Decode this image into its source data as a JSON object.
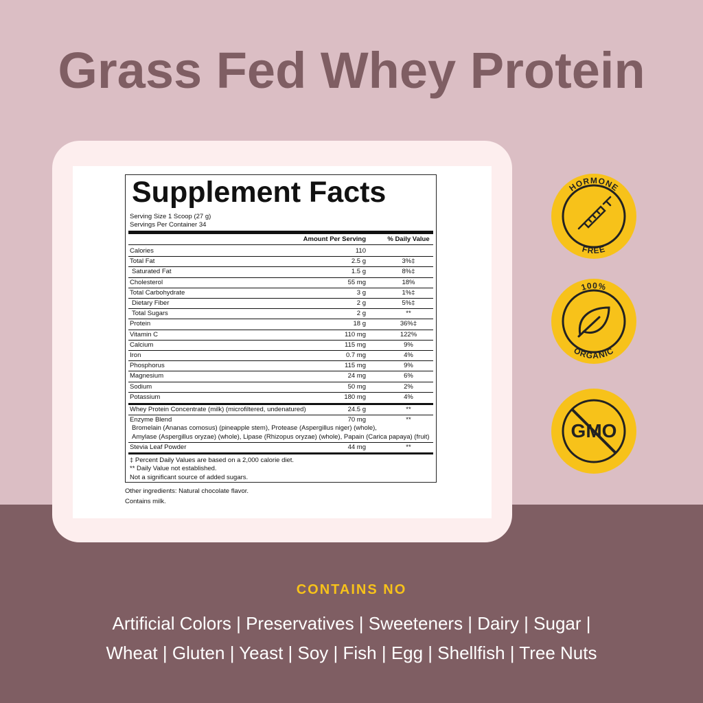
{
  "title": "Grass Fed Whey Protein",
  "facts": {
    "title": "Supplement Facts",
    "serving_size": "Serving Size 1 Scoop (27 g)",
    "servings_per_container": "Servings Per Container 34",
    "header": {
      "amount": "Amount Per Serving",
      "dv": "% Daily Value"
    },
    "rows": [
      {
        "name": "Calories",
        "amount": "110"
      },
      {
        "name": "Total Fat",
        "amount": "2.5 g",
        "dv": "3%‡"
      },
      {
        "name": "Saturated Fat",
        "amount": "1.5 g",
        "dv": "8%‡",
        "indent": true
      },
      {
        "name": "Cholesterol",
        "amount": "55 mg",
        "dv": "18%"
      },
      {
        "name": "Total Carbohydrate",
        "amount": "3 g",
        "dv": "1%‡"
      },
      {
        "name": "Dietary Fiber",
        "amount": "2 g",
        "dv": "5%‡",
        "indent": true
      },
      {
        "name": "Total Sugars",
        "amount": "2 g",
        "dv": "**",
        "indent": true
      },
      {
        "name": "Protein",
        "amount": "18 g",
        "dv": "36%‡"
      },
      {
        "name": "Vitamin C",
        "amount": "110 mg",
        "dv": "122%"
      },
      {
        "name": "Calcium",
        "amount": "115 mg",
        "dv": "9%"
      },
      {
        "name": "Iron",
        "amount": "0.7 mg",
        "dv": "4%"
      },
      {
        "name": "Phosphorus",
        "amount": "115 mg",
        "dv": "9%"
      },
      {
        "name": "Magnesium",
        "amount": "24 mg",
        "dv": "6%"
      },
      {
        "name": "Sodium",
        "amount": "50 mg",
        "dv": "2%"
      },
      {
        "name": "Potassium",
        "amount": "180 mg",
        "dv": "4%"
      }
    ],
    "other_rows": [
      {
        "name": "Whey Protein Concentrate (milk) (microfiltered, undenatured)",
        "amount": "24.5 g",
        "dv": "**"
      },
      {
        "name": "Enzyme Blend",
        "amount": "70 mg",
        "dv": "**",
        "details": [
          "Bromelain (Ananas comosus) (pineapple stem), Protease (Aspergillus niger) (whole),",
          "Amylase (Aspergillus oryzae) (whole), Lipase (Rhizopus oryzae) (whole), Papain (Carica papaya) (fruit)"
        ]
      },
      {
        "name": "Stevia Leaf Powder",
        "amount": "44 mg",
        "dv": "**"
      }
    ],
    "footnotes": [
      "‡  Percent Daily Values are based on a 2,000 calorie diet.",
      "**  Daily Value not established.",
      "Not a significant source of added sugars."
    ],
    "other_ingredients": "Other ingredients: Natural chocolate flavor.",
    "contains": "Contains milk."
  },
  "badges": [
    {
      "top": "HORMONE",
      "bottom": "FREE"
    },
    {
      "top": "100%",
      "bottom": "ORGANIC"
    },
    {
      "center": "GMO"
    }
  ],
  "contains_no": {
    "heading": "CONTAINS NO",
    "lines": [
      "Artificial Colors | Preservatives | Sweeteners | Dairy | Sugar |",
      "Wheat | Gluten | Yeast | Soy | Fish | Egg | Shellfish | Tree Nuts"
    ]
  }
}
